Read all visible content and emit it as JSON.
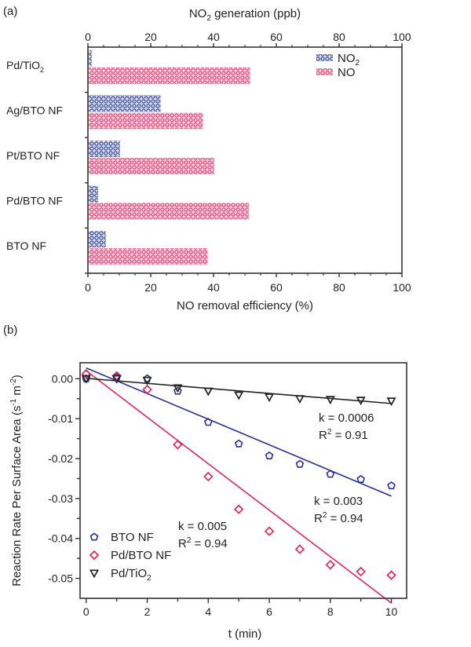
{
  "figure": {
    "panels": [
      "(a)",
      "(b)"
    ]
  },
  "chart_data": [
    {
      "type": "bar",
      "orientation": "horizontal",
      "panel_label": "(a)",
      "categories": [
        "Pd/TiO2",
        "Ag/BTO NF",
        "Pt/BTO NF",
        "Pd/BTO NF",
        "BTO NF"
      ],
      "category_labels": [
        {
          "main": "Pd/TiO",
          "sub": "2"
        },
        {
          "main": "Ag/BTO NF",
          "sub": ""
        },
        {
          "main": "Pt/BTO NF",
          "sub": ""
        },
        {
          "main": "Pd/BTO NF",
          "sub": ""
        },
        {
          "main": "BTO NF",
          "sub": ""
        }
      ],
      "series": [
        {
          "name": "NO2",
          "legend_main": "NO",
          "legend_sub": "2",
          "axis": "top",
          "color": "#2e3f8f",
          "values": [
            1,
            23,
            10,
            3,
            5.5
          ]
        },
        {
          "name": "NO",
          "legend_main": "NO",
          "legend_sub": "",
          "axis": "bottom",
          "color": "#e8336b",
          "values": [
            51.5,
            36.5,
            40,
            51,
            38
          ]
        }
      ],
      "top_axis": {
        "label_main": "NO",
        "label_sub": "2",
        "label_rest": " generation (ppb)",
        "range": [
          0,
          100
        ],
        "ticks": [
          "0",
          "20",
          "40",
          "60",
          "80",
          "100"
        ]
      },
      "bottom_axis": {
        "label": "NO removal efficiency (%)",
        "range": [
          0,
          100
        ],
        "ticks": [
          "0",
          "20",
          "40",
          "60",
          "80",
          "100"
        ]
      },
      "legend_position": "top-right",
      "grid": false
    },
    {
      "type": "scatter",
      "panel_label": "(b)",
      "xlabel": "t (min)",
      "ylabel_main": "Reaction Rate Per Surface Area (s",
      "ylabel_sup1": "-1",
      "ylabel_mid": " m",
      "ylabel_sup2": "-2",
      "ylabel_end": ")",
      "xlim": [
        -0.2,
        10.5
      ],
      "ylim": [
        -0.055,
        0.004
      ],
      "xticks": [
        0,
        2,
        4,
        6,
        8,
        10
      ],
      "xtick_labels": [
        "0",
        "2",
        "4",
        "6",
        "8",
        "10"
      ],
      "yticks": [
        0,
        -0.01,
        -0.02,
        -0.03,
        -0.04,
        -0.05
      ],
      "ytick_labels": [
        "0.00",
        "-0.01",
        "-0.02",
        "-0.03",
        "-0.04",
        "-0.05"
      ],
      "x": [
        0,
        1,
        2,
        3,
        4,
        5,
        6,
        7,
        8,
        9,
        10
      ],
      "series": [
        {
          "name": "BTO NF",
          "legend_main": "BTO NF",
          "legend_sub": "",
          "color": "#27329a",
          "marker": "pentagon",
          "values": [
            0,
            0.0003,
            0,
            -0.0031,
            -0.0109,
            -0.0163,
            -0.0193,
            -0.0214,
            -0.0239,
            -0.0252,
            -0.0268
          ],
          "fit": {
            "y_at_0": 0.0027,
            "y_at_10": -0.0294
          }
        },
        {
          "name": "Pd/BTO NF",
          "legend_main": "Pd/BTO NF",
          "legend_sub": "",
          "color": "#e8245a",
          "marker": "diamond",
          "values": [
            0.0012,
            0.0007,
            -0.0027,
            -0.0165,
            -0.0245,
            -0.0327,
            -0.0382,
            -0.0427,
            -0.0466,
            -0.0483,
            -0.0492
          ],
          "fit": {
            "y_at_0": 0.002,
            "y_at_10": -0.0562
          }
        },
        {
          "name": "Pd/TiO2",
          "legend_main": "Pd/TiO",
          "legend_sub": "2",
          "color": "#222222",
          "marker": "triangle-down",
          "values": [
            0,
            0,
            -0.0004,
            -0.0023,
            -0.0031,
            -0.0041,
            -0.0046,
            -0.005,
            -0.0052,
            -0.0054,
            -0.0056
          ],
          "fit": {
            "y_at_0": 0.0001,
            "y_at_10": -0.0062
          }
        }
      ],
      "annotations": [
        {
          "k": "k = 0.0006",
          "r2_main": "R",
          "r2_sup": "2",
          "r2_rest": " = 0.91",
          "series": "Pd/TiO2"
        },
        {
          "k": "k = 0.003",
          "r2_main": "R",
          "r2_sup": "2",
          "r2_rest": " = 0.94",
          "series": "BTO NF"
        },
        {
          "k": "k = 0.005",
          "r2_main": "R",
          "r2_sup": "2",
          "r2_rest": " = 0.94",
          "series": "Pd/BTO NF"
        }
      ],
      "legend_position": "bottom-left",
      "grid": false
    }
  ]
}
